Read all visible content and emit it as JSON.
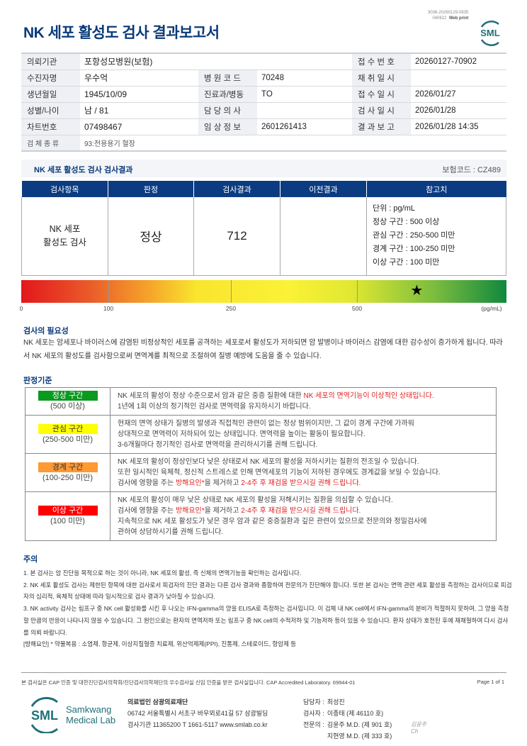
{
  "header": {
    "doc_code": "3036-20260129-0835",
    "doc_code2": "040622",
    "web_print": "Web print",
    "title": "NK 세포 활성도 검사 결과보고서",
    "logo_text": "SML"
  },
  "info": {
    "rows": [
      [
        {
          "l": "의뢰기관",
          "v": "포항성모병원(보험)"
        },
        null,
        {
          "l": "접 수 번 호",
          "v": "20260127-70902"
        }
      ],
      [
        {
          "l": "수진자명",
          "v": "우수억"
        },
        {
          "l": "병 원 코 드",
          "v": "70248"
        },
        {
          "l": "채 취 일 시",
          "v": ""
        }
      ],
      [
        {
          "l": "생년월일",
          "v": "1945/10/09"
        },
        {
          "l": "진료과/병동",
          "v": "TO"
        },
        {
          "l": "접 수 일 시",
          "v": "2026/01/27"
        }
      ],
      [
        {
          "l": "성별/나이",
          "v": "남 / 81"
        },
        {
          "l": "담 당 의 사",
          "v": ""
        },
        {
          "l": "검 사 일 시",
          "v": "2026/01/28"
        }
      ],
      [
        {
          "l": "차트번호",
          "v": "07498467"
        },
        {
          "l": "임 상 정 보",
          "v": "2601261413"
        },
        {
          "l": "결 과 보 고",
          "v": "2026/01/28 14:35"
        }
      ]
    ],
    "specimen_label": "검 체 종 류",
    "specimen": "93:전용용기 혈장"
  },
  "result": {
    "section_title": "NK 세포 활성도 검사 검사결과",
    "insurance_code": "보험코드 : CZ489",
    "headers": [
      "검사항목",
      "판정",
      "검사결과",
      "이전결과",
      "참고치"
    ],
    "item_line1": "NK 세포",
    "item_line2": "활성도 검사",
    "judgement": "정상",
    "value": "712",
    "previous": "",
    "reference": [
      "단위 : pg/mL",
      "정상 구간 : 500 이상",
      "관심 구간 : 250-500 미만",
      "경계 구간 : 100-250 미만",
      "이상 구간 : 100 미만"
    ]
  },
  "scale": {
    "ticks": [
      "0",
      "100",
      "250",
      "500"
    ],
    "unit": "(pg/mL)",
    "marker_value": 712,
    "marker_icon": "star-icon"
  },
  "necessity": {
    "title": "검사의 필요성",
    "text": "NK 세포는 암세포나 바이러스에 감염된 비정상적인 세포를 공격하는 세포로서 활성도가 저하되면 암 발병이나 바이러스 감염에 대한 감수성이 증가하게 됩니다. 따라서 NK 세포의 활성도를 검사함으로써 면역계를 최적으로 조절하여 질병 예방에 도움을 줄 수 있습니다."
  },
  "criteria": {
    "title": "판정기준",
    "rows": [
      {
        "zone": "정상 구간",
        "range": "(500 이상)",
        "color": "#0a9a1e",
        "text_color": "#ffffff",
        "lines": [
          [
            "NK 세포의 활성이 정상 수준으로서 암과 같은 중증 질환에 대한 ",
            {
              "red": "NK 세포의 면역기능이 이상적인 상태입니다."
            }
          ],
          [
            "1년에 1회 이상의 정기적인 검사로 면역력을 유지하시기 바랍니다."
          ]
        ]
      },
      {
        "zone": "관심 구간",
        "range": "(250-500 미만)",
        "color": "#ffff00",
        "text_color": "#333333",
        "lines": [
          [
            "현재의 면역 상태가 질병의 발생과 직접적인 관련이 없는 정상 범위이지만, 그 값이 경계 구간에 가까워"
          ],
          [
            "상대적으로 면역력이 저하되어 있는 상태입니다. 면역력을 높이는 활동이 필요합니다."
          ],
          [
            "3-6개월마다 정기적인 검사로 면역력을 관리하시기를 권해 드립니다."
          ]
        ]
      },
      {
        "zone": "경계 구간",
        "range": "(100-250 미만)",
        "color": "#ff9933",
        "text_color": "#333333",
        "lines": [
          [
            "NK 세포의 활성이 정상인보다 낮은 상태로서 NK 세포의 활성을 저하시키는 질환의 전조일 수 있습니다."
          ],
          [
            "또한 일시적인 육체적, 정신적 스트레스로 인해 면역세포의 기능이 저하된 경우에도 경계값을 보일 수 있습니다."
          ],
          [
            "검사에 영향을 주는 ",
            {
              "red": "방해요인*"
            },
            "을 제거하고 ",
            {
              "red": "2-4주 후 재검을 받으시길 권해 드립니다."
            }
          ]
        ]
      },
      {
        "zone": "이상 구간",
        "range": "(100 미만)",
        "color": "#ff0000",
        "text_color": "#ffffff",
        "lines": [
          [
            "NK 세포의 활성이 매우 낮은 상태로 NK 세포의 활성을 저해시키는 질환을 의심할 수 있습니다."
          ],
          [
            "검사에 영향을 주는 ",
            {
              "red": "방해요인*"
            },
            "을 제거하고 ",
            {
              "red": "2-4주 후 재검을 받으시길 권해 드립니다."
            }
          ],
          [
            "지속적으로 NK 세포 활성도가 낮은 경우 암과 같은 중증질환과 깊은 관련이 있으므로 전문의와 정밀검사에"
          ],
          [
            "관하여 상담하시기를 권해 드립니다."
          ]
        ]
      }
    ]
  },
  "notes": {
    "title": "주의",
    "items": [
      "1. 본 검사는 암 진단을 목적으로 하는 것이 아니라, NK 세포의 활성, 즉 신체의 면역기능을 확인하는 검사입니다.",
      "2. NK 세포 활성도 검사는 제한된 항목에 대한 검사로서 피검자의 진단 결과는 다른 검사 결과와 종합하여 전문의가 진단해야 합니다. 또한 본 검사는 면역 관련 세포 활성을 측정하는 검사이므로 피검자의 심리적, 육체적 상태에 따라 일시적으로 검사 결과가 낮아질 수 있습니다.",
      "3. NK activity 검사는 림프구 중 NK cell 활성화를 시킨 후 나오는 IFN-gamma의 양을 ELISA로 측정하는 검사입니다. 이 검체 내 NK cell에서 IFN-gamma의 분비가 적절하지 못하여, 그 양을 측정할 만큼의 반응이 나타나지 않을 수 있습니다. 그 원인으로는 환자의 면역저하 또는 림프구 중 NK cell의 수적저하 및 기능저하 등이 있을 수 있습니다. 환자 상태가 호전된 후에 재채혈하여 다시 검사를 의뢰 바랍니다.",
      "[방해요인] * 약물복용 : 소염제, 항균제, 이상지질혈증 치료제, 위산억제제(PPI), 진통제, 스테로이드, 항암제 등"
    ]
  },
  "footer": {
    "accreditation": "본 검사실은 CAP 인증 및 대한진단검사의학회/진단검사의학재단의 우수검사실 신임 인증을 받은 검사실입니다.  CAP Accredited Laboratory. 69944-01",
    "page": "Page 1 of 1",
    "logo_line1": "Samkwang",
    "logo_line2": "Medical Lab",
    "org_name": "의료법인 삼광의료재단",
    "address": "06742 서울특별시 서초구 바우뫼로41길 57 삼광빌딩",
    "contact": "검사기관 11365200  T 1661-5117  www.smlab.co.kr",
    "staff": [
      {
        "role": "담당자 :",
        "name": "최성진"
      },
      {
        "role": "검사자 :",
        "name": "이종태 (제 46110 호)"
      },
      {
        "role": "전문의 :",
        "name": "김윤주 M.D. (제 901 호)"
      },
      {
        "role": "",
        "name": "지현영 M.D. (제 333 호)"
      }
    ],
    "signature_text": "김윤주"
  },
  "colors": {
    "navy": "#0b3c82",
    "accent_red": "#e02020",
    "logo_teal": "#1f6f78"
  }
}
